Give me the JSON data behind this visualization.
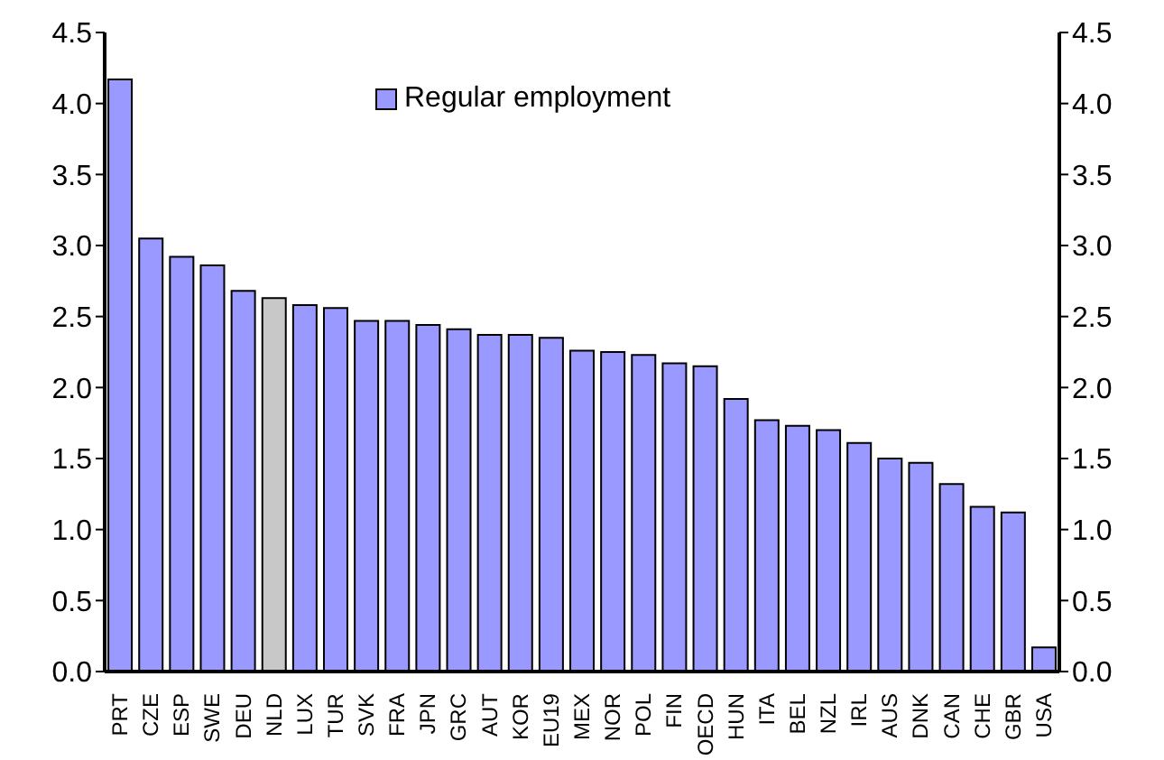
{
  "chart_data": {
    "type": "bar",
    "categories": [
      "PRT",
      "CZE",
      "ESP",
      "SWE",
      "DEU",
      "NLD",
      "LUX",
      "TUR",
      "SVK",
      "FRA",
      "JPN",
      "GRC",
      "AUT",
      "KOR",
      "EU19",
      "MEX",
      "NOR",
      "POL",
      "FIN",
      "OECD",
      "HUN",
      "ITA",
      "BEL",
      "NZL",
      "IRL",
      "AUS",
      "DNK",
      "CAN",
      "CHE",
      "GBR",
      "USA"
    ],
    "series": [
      {
        "name": "Regular employment",
        "color": "#9999ff",
        "colors": [
          "#9999ff",
          "#9999ff",
          "#9999ff",
          "#9999ff",
          "#9999ff",
          "#c8c8c8",
          "#9999ff",
          "#9999ff",
          "#9999ff",
          "#9999ff",
          "#9999ff",
          "#9999ff",
          "#9999ff",
          "#9999ff",
          "#9999ff",
          "#9999ff",
          "#9999ff",
          "#9999ff",
          "#9999ff",
          "#9999ff",
          "#9999ff",
          "#9999ff",
          "#9999ff",
          "#9999ff",
          "#9999ff",
          "#9999ff",
          "#9999ff",
          "#9999ff",
          "#9999ff",
          "#9999ff",
          "#9999ff"
        ],
        "values": [
          4.17,
          3.05,
          2.92,
          2.86,
          2.68,
          2.63,
          2.58,
          2.56,
          2.47,
          2.47,
          2.44,
          2.41,
          2.37,
          2.37,
          2.35,
          2.26,
          2.25,
          2.23,
          2.17,
          2.15,
          1.92,
          1.77,
          1.73,
          1.7,
          1.61,
          1.5,
          1.47,
          1.32,
          1.16,
          1.12,
          0.17
        ]
      }
    ],
    "ylim": [
      0,
      4.5
    ],
    "yticks": [
      {
        "value": 0,
        "label": "0.0"
      },
      {
        "value": 0.5,
        "label": "0.5"
      },
      {
        "value": 1,
        "label": "1.0"
      },
      {
        "value": 1.5,
        "label": "1.5"
      },
      {
        "value": 2,
        "label": "2.0"
      },
      {
        "value": 2.5,
        "label": "2.5"
      },
      {
        "value": 3,
        "label": "3.0"
      },
      {
        "value": 3.5,
        "label": "3.5"
      },
      {
        "value": 4,
        "label": "4.0"
      },
      {
        "value": 4.5,
        "label": "4.5"
      }
    ],
    "y2lim": [
      0,
      4.5
    ],
    "y2ticks": [
      {
        "value": 0,
        "label": "0.0"
      },
      {
        "value": 0.5,
        "label": "0.5"
      },
      {
        "value": 1,
        "label": "1.0"
      },
      {
        "value": 1.5,
        "label": "1.5"
      },
      {
        "value": 2,
        "label": "2.0"
      },
      {
        "value": 2.5,
        "label": "2.5"
      },
      {
        "value": 3,
        "label": "3.0"
      },
      {
        "value": 3.5,
        "label": "3.5"
      },
      {
        "value": 4,
        "label": "4.0"
      },
      {
        "value": 4.5,
        "label": "4.5"
      }
    ],
    "grid": false,
    "legend": "top"
  }
}
